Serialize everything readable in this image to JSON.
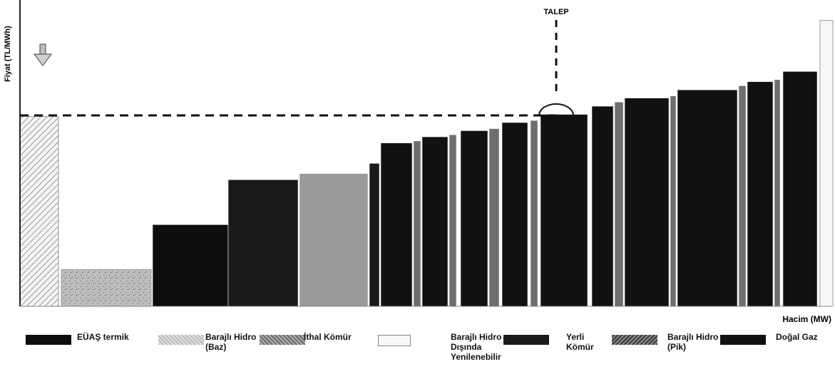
{
  "chart_data": {
    "type": "bar",
    "ylabel": "Fiyat (TL/MWh)",
    "xlabel": "Hacim (MW)",
    "annotation": "TALEP",
    "demand_price": 0.935,
    "ylim": [
      0,
      1.5
    ],
    "x_unit_note": "",
    "legend": [
      {
        "key": "euas",
        "label": "EÜAŞ termik",
        "color": "#0d0d0d"
      },
      {
        "key": "baraj_baz",
        "label": "Barajlı Hidro (Baz)",
        "color": "#cfd2cf"
      },
      {
        "key": "ithal",
        "label": "İthal Kömür",
        "color": "#9a9a9a"
      },
      {
        "key": "yenilenebilir",
        "label": "Barajlı Hidro Dışında Yenilenebilir",
        "color": "#f7f7f7"
      },
      {
        "key": "yerli",
        "label": "Yerli Kömür",
        "color": "#1a1a1a"
      },
      {
        "key": "baraj_pik",
        "label": "Barajlı Hidro (Pik)",
        "color": "#6e6e6e"
      },
      {
        "key": "dogalgaz",
        "label": "Doğal Gaz",
        "color": "#111111"
      }
    ],
    "bars": [
      {
        "x0": 0,
        "x1": 54,
        "value": 0.93,
        "fuel": "yenilenebilir"
      },
      {
        "x0": 58,
        "x1": 184,
        "value": 0.18,
        "fuel": "baraj_baz"
      },
      {
        "x0": 186,
        "x1": 292,
        "value": 0.4,
        "fuel": "euas"
      },
      {
        "x0": 292,
        "x1": 390,
        "value": 0.62,
        "fuel": "yerli"
      },
      {
        "x0": 392,
        "x1": 488,
        "value": 0.65,
        "fuel": "ithal"
      },
      {
        "x0": 490,
        "x1": 504,
        "value": 0.7,
        "fuel": "yerli"
      },
      {
        "x0": 506,
        "x1": 550,
        "value": 0.8,
        "fuel": "dogalgaz"
      },
      {
        "x0": 552,
        "x1": 562,
        "value": 0.81,
        "fuel": "baraj_pik"
      },
      {
        "x0": 564,
        "x1": 600,
        "value": 0.83,
        "fuel": "dogalgaz"
      },
      {
        "x0": 602,
        "x1": 612,
        "value": 0.84,
        "fuel": "baraj_pik"
      },
      {
        "x0": 618,
        "x1": 656,
        "value": 0.86,
        "fuel": "dogalgaz"
      },
      {
        "x0": 658,
        "x1": 672,
        "value": 0.87,
        "fuel": "baraj_pik"
      },
      {
        "x0": 676,
        "x1": 712,
        "value": 0.9,
        "fuel": "dogalgaz"
      },
      {
        "x0": 716,
        "x1": 726,
        "value": 0.91,
        "fuel": "baraj_pik"
      },
      {
        "x0": 730,
        "x1": 796,
        "value": 0.94,
        "fuel": "dogalgaz"
      },
      {
        "x0": 802,
        "x1": 832,
        "value": 0.98,
        "fuel": "dogalgaz"
      },
      {
        "x0": 834,
        "x1": 846,
        "value": 1.0,
        "fuel": "baraj_pik"
      },
      {
        "x0": 848,
        "x1": 910,
        "value": 1.02,
        "fuel": "dogalgaz"
      },
      {
        "x0": 912,
        "x1": 920,
        "value": 1.03,
        "fuel": "baraj_pik"
      },
      {
        "x0": 922,
        "x1": 1006,
        "value": 1.06,
        "fuel": "dogalgaz"
      },
      {
        "x0": 1008,
        "x1": 1018,
        "value": 1.08,
        "fuel": "baraj_pik"
      },
      {
        "x0": 1020,
        "x1": 1056,
        "value": 1.1,
        "fuel": "dogalgaz"
      },
      {
        "x0": 1058,
        "x1": 1066,
        "value": 1.11,
        "fuel": "baraj_pik"
      },
      {
        "x0": 1070,
        "x1": 1118,
        "value": 1.15,
        "fuel": "dogalgaz"
      },
      {
        "x0": 1122,
        "x1": 1140,
        "value": 1.4,
        "fuel": "yenilenebilir"
      }
    ]
  }
}
